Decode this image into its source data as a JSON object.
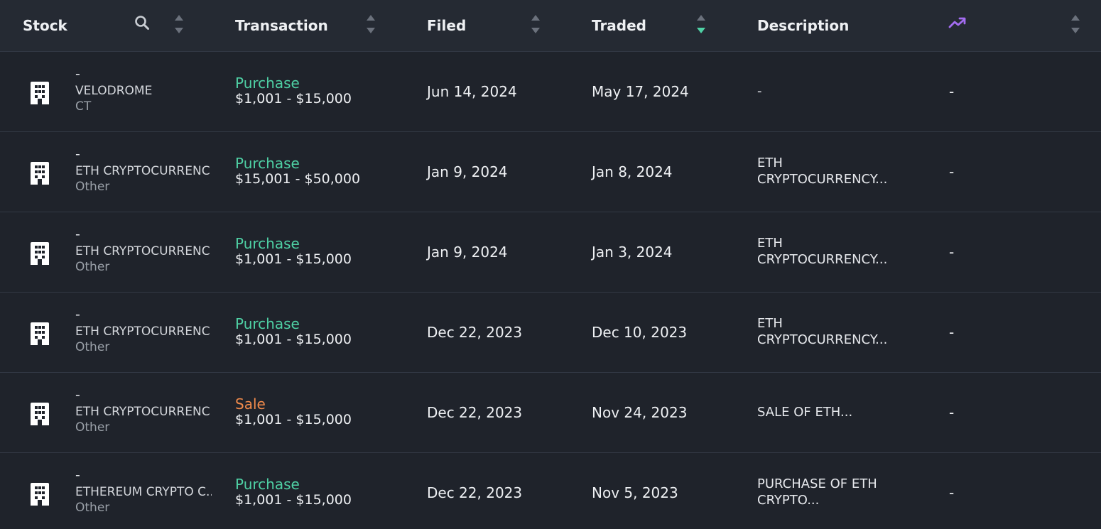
{
  "colors": {
    "purchase": "#4fd1a5",
    "sale": "#f08a4b",
    "accent_trend": "#a36cf0",
    "active_sort": "#4fd1a5"
  },
  "header": {
    "stock": "Stock",
    "transaction": "Transaction",
    "filed": "Filed",
    "traded": "Traded",
    "description": "Description",
    "search_icon": "search-icon",
    "trend_icon": "trending-up-icon"
  },
  "rows": [
    {
      "ticker": "-",
      "name": "VELODROME",
      "asset_type": "CT",
      "tx_type": "Purchase",
      "tx_kind": "purchase",
      "amount": "$1,001 - $15,000",
      "filed": "Jun 14, 2024",
      "traded": "May 17, 2024",
      "desc1": "-",
      "desc2": "",
      "perf": "-"
    },
    {
      "ticker": "-",
      "name": "ETH CRYPTOCURRENC",
      "asset_type": "Other",
      "tx_type": "Purchase",
      "tx_kind": "purchase",
      "amount": "$15,001 - $50,000",
      "filed": "Jan 9, 2024",
      "traded": "Jan 8, 2024",
      "desc1": "ETH",
      "desc2": "CRYPTOCURRENCY...",
      "perf": "-"
    },
    {
      "ticker": "-",
      "name": "ETH CRYPTOCURRENC",
      "asset_type": "Other",
      "tx_type": "Purchase",
      "tx_kind": "purchase",
      "amount": "$1,001 - $15,000",
      "filed": "Jan 9, 2024",
      "traded": "Jan 3, 2024",
      "desc1": "ETH",
      "desc2": "CRYPTOCURRENCY...",
      "perf": "-"
    },
    {
      "ticker": "-",
      "name": "ETH CRYPTOCURRENC",
      "asset_type": "Other",
      "tx_type": "Purchase",
      "tx_kind": "purchase",
      "amount": "$1,001 - $15,000",
      "filed": "Dec 22, 2023",
      "traded": "Dec 10, 2023",
      "desc1": "ETH",
      "desc2": "CRYPTOCURRENCY...",
      "perf": "-"
    },
    {
      "ticker": "-",
      "name": "ETH CRYPTOCURRENC",
      "asset_type": "Other",
      "tx_type": "Sale",
      "tx_kind": "sale",
      "amount": "$1,001 - $15,000",
      "filed": "Dec 22, 2023",
      "traded": "Nov 24, 2023",
      "desc1": "SALE OF ETH...",
      "desc2": "",
      "perf": "-"
    },
    {
      "ticker": "-",
      "name": "ETHEREUM CRYPTO C..",
      "asset_type": "Other",
      "tx_type": "Purchase",
      "tx_kind": "purchase",
      "amount": "$1,001 - $15,000",
      "filed": "Dec 22, 2023",
      "traded": "Nov 5, 2023",
      "desc1": "PURCHASE OF ETH",
      "desc2": "CRYPTO...",
      "perf": "-"
    }
  ]
}
